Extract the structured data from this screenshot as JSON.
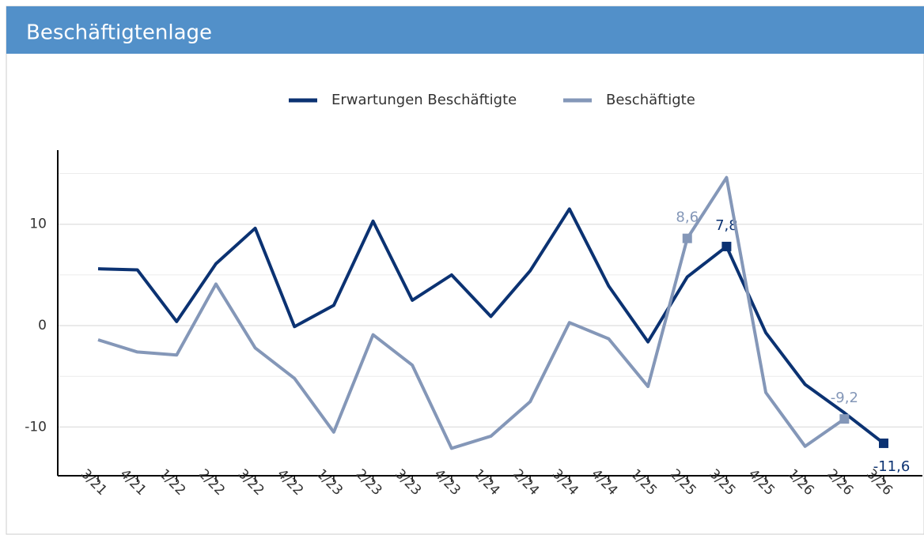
{
  "chart_data": {
    "type": "line",
    "title": "Beschäftigtenlage",
    "categories": [
      "3/21",
      "4/21",
      "1/22",
      "2/22",
      "3/22",
      "4/22",
      "1/23",
      "2/23",
      "3/23",
      "4/23",
      "1/24",
      "2/24",
      "3/24",
      "4/24",
      "1/25",
      "2/25",
      "3/25",
      "4/25",
      "1/26",
      "2/26",
      "3/26"
    ],
    "series": [
      {
        "name": "Erwartungen Beschäftigte",
        "color": "#0b3272",
        "values": [
          5.6,
          5.5,
          0.4,
          6.1,
          9.6,
          -0.1,
          2.0,
          10.3,
          2.5,
          5.0,
          0.9,
          5.4,
          11.5,
          3.9,
          -1.6,
          4.8,
          7.8,
          -0.7,
          -5.8,
          -8.6,
          -11.6
        ],
        "value_labels": [
          null,
          null,
          null,
          null,
          null,
          null,
          null,
          null,
          null,
          null,
          null,
          null,
          null,
          null,
          null,
          null,
          "7,8",
          null,
          null,
          null,
          "-11,6"
        ]
      },
      {
        "name": "Beschäftigte",
        "color": "#8497b8",
        "values": [
          -1.4,
          -2.6,
          -2.9,
          4.1,
          -2.2,
          -5.2,
          -10.5,
          -0.9,
          -3.9,
          -12.1,
          -10.9,
          -7.5,
          0.3,
          -1.3,
          -6.0,
          8.6,
          14.6,
          -6.6,
          -11.9,
          -9.2,
          null
        ],
        "value_labels": [
          null,
          null,
          null,
          null,
          null,
          null,
          null,
          null,
          null,
          null,
          null,
          null,
          null,
          null,
          null,
          "8,6",
          null,
          null,
          null,
          "-9,2",
          null
        ]
      }
    ],
    "ylim": [
      -14.8,
      17.3
    ],
    "yticks": [
      -10,
      0,
      10
    ],
    "minor_yticks": [
      -5,
      5,
      15
    ],
    "grid": true,
    "legend": "top"
  }
}
